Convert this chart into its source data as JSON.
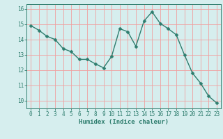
{
  "x": [
    0,
    1,
    2,
    3,
    4,
    5,
    6,
    7,
    8,
    9,
    10,
    11,
    12,
    13,
    14,
    15,
    16,
    17,
    18,
    19,
    20,
    21,
    22,
    23
  ],
  "y": [
    14.9,
    14.6,
    14.2,
    14.0,
    13.4,
    13.2,
    12.7,
    12.7,
    12.4,
    12.15,
    12.9,
    14.7,
    14.5,
    13.55,
    15.2,
    15.8,
    15.05,
    14.7,
    14.3,
    13.0,
    11.8,
    11.15,
    10.3,
    9.85
  ],
  "line_color": "#2e7d6e",
  "marker_color": "#2e7d6e",
  "bg_color": "#d6eeee",
  "grid_color": "#f0a0a0",
  "xlabel": "Humidex (Indice chaleur)",
  "ylim": [
    9.5,
    16.3
  ],
  "xlim": [
    -0.5,
    23.5
  ],
  "yticks": [
    10,
    11,
    12,
    13,
    14,
    15,
    16
  ],
  "xticks": [
    0,
    1,
    2,
    3,
    4,
    5,
    6,
    7,
    8,
    9,
    10,
    11,
    12,
    13,
    14,
    15,
    16,
    17,
    18,
    19,
    20,
    21,
    22,
    23
  ],
  "line_width": 1.0,
  "marker_size": 2.5,
  "tick_fontsize": 5.5,
  "xlabel_fontsize": 6.5
}
